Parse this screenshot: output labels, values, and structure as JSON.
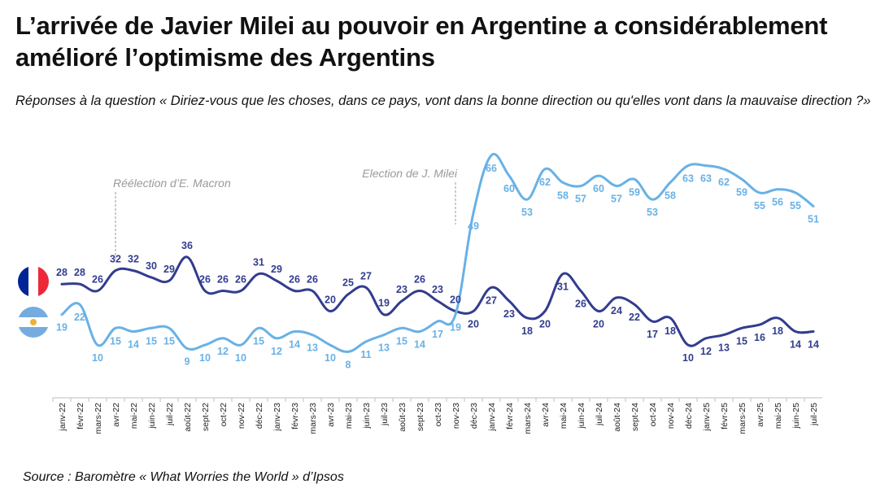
{
  "title": "L’arrivée de Javier Milei au pouvoir en Argentine a considérablement amélioré l’optimisme des Argentins",
  "subtitle": "Réponses à la question « Diriez-vous que les choses, dans ce pays, vont dans la bonne direction ou qu'elles vont dans la mauvaise direction ?»",
  "source": "Source : Baromètre « What Worries the World » d’Ipsos",
  "flags": {
    "france": "france-flag-icon",
    "argentina": "argentina-flag-icon"
  },
  "colors": {
    "france": "#323c8e",
    "argentina": "#68b1e6",
    "annotation": "#9a9a9a",
    "axis": "#bfbfbf",
    "fr_blue": "#002395",
    "fr_white": "#ffffff",
    "fr_red": "#ed2939",
    "ar_blue": "#74acdf",
    "ar_white": "#ffffff"
  },
  "chart_data": {
    "type": "line",
    "categories": [
      "janv-22",
      "févr-22",
      "mars-22",
      "avr-22",
      "mai-22",
      "juin-22",
      "juil-22",
      "août-22",
      "sept-22",
      "oct-22",
      "nov-22",
      "déc-22",
      "janv-23",
      "févr-23",
      "mars-23",
      "avr-23",
      "mai-23",
      "juin-23",
      "juil-23",
      "août-23",
      "sept-23",
      "oct-23",
      "nov-23",
      "déc-23",
      "janv-24",
      "févr-24",
      "mars-24",
      "avr-24",
      "mai-24",
      "juin-24",
      "juil-24",
      "août-24",
      "sept-24",
      "oct-24",
      "nov-24",
      "déc-24",
      "janv-25",
      "févr-25",
      "mars-25",
      "avr-25",
      "mai-25",
      "juin-25",
      "juil-25"
    ],
    "series": [
      {
        "name": "France",
        "values": [
          28,
          28,
          26,
          32,
          32,
          30,
          29,
          36,
          26,
          26,
          26,
          31,
          29,
          26,
          26,
          20,
          25,
          27,
          19,
          23,
          26,
          23,
          20,
          20,
          27,
          23,
          18,
          20,
          31,
          26,
          20,
          24,
          22,
          17,
          18,
          10,
          12,
          13,
          15,
          16,
          18,
          14,
          14
        ]
      },
      {
        "name": "Argentine",
        "values": [
          19,
          22,
          10,
          15,
          14,
          15,
          15,
          9,
          10,
          12,
          10,
          15,
          12,
          14,
          13,
          10,
          8,
          11,
          13,
          15,
          14,
          17,
          19,
          49,
          66,
          60,
          53,
          62,
          58,
          57,
          60,
          57,
          59,
          53,
          58,
          63,
          63,
          62,
          59,
          55,
          56,
          55,
          51
        ]
      }
    ],
    "annotations": [
      {
        "label": "Réélection d’E. Macron",
        "category": "avr-22"
      },
      {
        "label": "Election de J. Milei",
        "category": "nov-23"
      }
    ],
    "ylim": [
      0,
      70
    ],
    "xlabel": "",
    "ylabel": ""
  }
}
